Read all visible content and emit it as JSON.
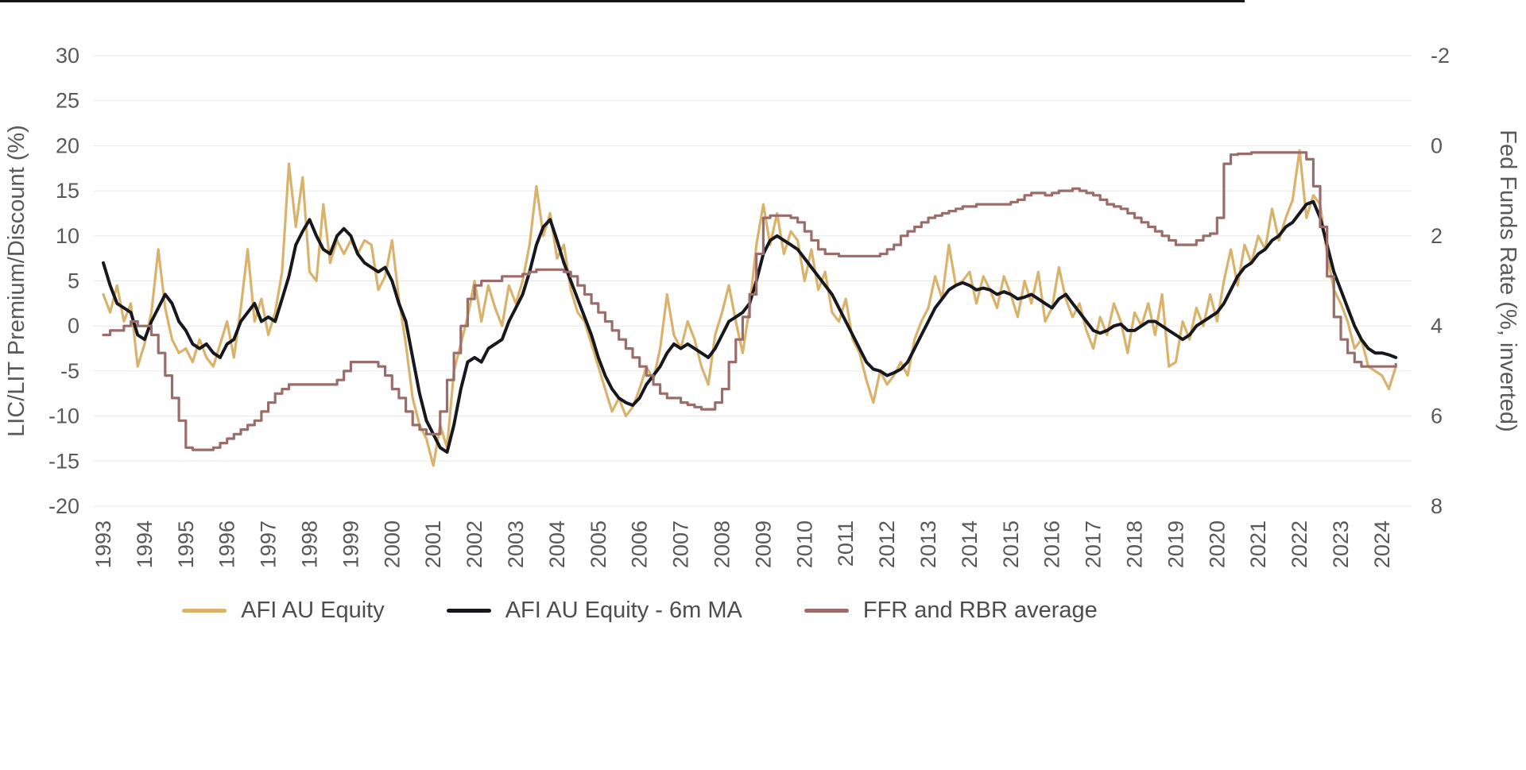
{
  "page": {
    "background_color": "#FFFFFF",
    "top_rule_color": "#141414"
  },
  "chart_data": {
    "type": "line",
    "title": "",
    "grid": true,
    "legend_position": "bottom",
    "left_axis": {
      "label": "LIC/LIT Premium/Discount (%)",
      "min": -20,
      "max": 30,
      "ticks": [
        30,
        25,
        20,
        15,
        10,
        5,
        0,
        -5,
        -10,
        -15,
        -20
      ]
    },
    "right_axis": {
      "label": "Fed Funds Rate (%, inverted)",
      "inverted": true,
      "ticks": [
        -2,
        0,
        2,
        4,
        6,
        8
      ]
    },
    "x_axis": {
      "start_year": 1993,
      "step_months": 2,
      "year_labels": [
        1993,
        1994,
        1995,
        1996,
        1997,
        1998,
        1999,
        2000,
        2001,
        2002,
        2003,
        2004,
        2005,
        2006,
        2007,
        2008,
        2009,
        2010,
        2011,
        2012,
        2013,
        2014,
        2015,
        2016,
        2017,
        2018,
        2019,
        2020,
        2021,
        2022,
        2023,
        2024
      ]
    },
    "series": [
      {
        "name": "AFI AU Equity",
        "color": "#D9B36C",
        "axis": "left",
        "width": 3.2,
        "step": false,
        "values": [
          3.5,
          1.5,
          4.5,
          0.5,
          2.5,
          -4.5,
          -2,
          1.5,
          8.5,
          2,
          -1.5,
          -3,
          -2.5,
          -4,
          -1.5,
          -3.5,
          -4.5,
          -2,
          0.5,
          -3.5,
          2,
          8.5,
          0.5,
          3,
          -1,
          1.5,
          6,
          18,
          11,
          16.5,
          6,
          5,
          13.5,
          7,
          9.5,
          8,
          9.5,
          8,
          9.5,
          9,
          4,
          5.5,
          9.5,
          3,
          -2,
          -8,
          -11,
          -12.5,
          -15.5,
          -11,
          -13.5,
          -5,
          -2,
          1,
          5,
          0.5,
          4.5,
          2,
          0,
          4.5,
          2.5,
          5,
          9,
          15.5,
          10,
          12.5,
          7.5,
          9,
          4,
          1.5,
          0.5,
          -2,
          -4.5,
          -7,
          -9.5,
          -8,
          -10,
          -9,
          -7,
          -4.5,
          -6,
          -2.5,
          3.5,
          -1,
          -2.5,
          0.5,
          -1.5,
          -4.5,
          -6.5,
          -1,
          1.5,
          4.5,
          0.5,
          -3,
          2,
          9,
          13.5,
          9,
          12.5,
          8,
          10.5,
          9.5,
          5,
          8.5,
          4,
          6,
          1.5,
          0.5,
          3,
          -1.5,
          -3,
          -6,
          -8.5,
          -5,
          -6.5,
          -5.5,
          -4,
          -5.5,
          -1.5,
          0.5,
          2,
          5.5,
          3,
          9,
          4.5,
          5,
          6,
          2.5,
          5.5,
          4,
          2,
          5.5,
          3.5,
          1,
          5,
          2.5,
          6,
          0.5,
          2,
          6.5,
          3,
          1,
          2.5,
          -0.5,
          -2.5,
          1,
          -1,
          2.5,
          0.5,
          -3,
          1.5,
          0,
          2.5,
          -1,
          3.5,
          -4.5,
          -4,
          0.5,
          -1.5,
          2,
          0,
          3.5,
          0.5,
          5,
          8.5,
          4.5,
          9,
          7,
          10,
          8.5,
          13,
          9.5,
          12,
          14,
          19.5,
          12,
          14.5,
          13.5,
          8,
          4,
          2.5,
          0.5,
          -2.5,
          -1.5,
          -4.5,
          -5,
          -5.5,
          -7,
          -4.5
        ]
      },
      {
        "name": "AFI AU Equity - 6m MA",
        "color": "#17171E",
        "axis": "left",
        "width": 4,
        "step": false,
        "values": [
          7,
          4.5,
          2.5,
          2,
          1.5,
          -1,
          -1.5,
          0.5,
          2,
          3.5,
          2.5,
          0.5,
          -0.5,
          -2,
          -2.5,
          -2,
          -3,
          -3.5,
          -2,
          -1.5,
          0.5,
          1.5,
          2.5,
          0.5,
          1,
          0.5,
          3,
          5.5,
          9,
          10.5,
          11.8,
          10,
          8.5,
          8,
          10,
          10.8,
          10,
          8,
          7,
          6.5,
          6,
          6.5,
          5,
          2.5,
          0.5,
          -3.5,
          -7.5,
          -10.5,
          -12,
          -13.5,
          -14,
          -11,
          -7,
          -4,
          -3.5,
          -4,
          -2.5,
          -2,
          -1.5,
          0.5,
          2,
          3.5,
          6,
          9,
          11,
          11.8,
          9.5,
          7,
          5,
          3,
          1,
          -1,
          -3.5,
          -5.5,
          -7,
          -8,
          -8.5,
          -8.8,
          -8,
          -6.5,
          -5.5,
          -4.5,
          -3,
          -2,
          -2.5,
          -2,
          -2.5,
          -3,
          -3.5,
          -2.5,
          -1,
          0.5,
          1,
          1.5,
          2.5,
          5,
          8,
          9.5,
          10,
          9.5,
          9,
          8.5,
          7.5,
          6.5,
          5.5,
          4.5,
          3.5,
          2,
          0.5,
          -1,
          -2.5,
          -4,
          -4.8,
          -5,
          -5.5,
          -5.2,
          -4.8,
          -4,
          -2.5,
          -1,
          0.5,
          2,
          3,
          4,
          4.5,
          4.8,
          4.5,
          4,
          4.2,
          4,
          3.5,
          3.8,
          3.5,
          3,
          3.2,
          3.5,
          3,
          2.5,
          2,
          3,
          3.5,
          2.5,
          1.5,
          0.5,
          -0.5,
          -0.8,
          -0.5,
          0,
          0.2,
          -0.5,
          -0.5,
          0,
          0.5,
          0.5,
          0,
          -0.5,
          -1,
          -1.5,
          -1,
          0,
          0.5,
          1,
          1.5,
          2.5,
          4,
          5.5,
          6.5,
          7,
          8,
          8.5,
          9.5,
          10,
          11,
          11.5,
          12.5,
          13.5,
          13.8,
          12,
          9,
          6,
          4,
          2,
          0,
          -1.5,
          -2.5,
          -3,
          -3,
          -3.2,
          -3.5
        ]
      },
      {
        "name": "FFR and RBR average",
        "color": "#9A6C6A",
        "axis": "right",
        "width": 3.2,
        "step": true,
        "values": [
          4.2,
          4.1,
          4.1,
          4,
          3.9,
          4,
          4,
          4.2,
          4.6,
          5.1,
          5.6,
          6.1,
          6.7,
          6.75,
          6.75,
          6.75,
          6.7,
          6.6,
          6.5,
          6.4,
          6.3,
          6.2,
          6.1,
          5.9,
          5.7,
          5.5,
          5.4,
          5.3,
          5.3,
          5.3,
          5.3,
          5.3,
          5.3,
          5.3,
          5.2,
          5,
          4.8,
          4.8,
          4.8,
          4.8,
          4.9,
          5.1,
          5.4,
          5.6,
          5.9,
          6.2,
          6.3,
          6.4,
          6.4,
          5.9,
          5.2,
          4.6,
          4,
          3.4,
          3.1,
          3,
          3,
          3,
          2.9,
          2.9,
          2.9,
          2.85,
          2.8,
          2.75,
          2.75,
          2.75,
          2.75,
          2.8,
          2.9,
          3.1,
          3.3,
          3.5,
          3.7,
          3.9,
          4.1,
          4.3,
          4.5,
          4.7,
          4.9,
          5.1,
          5.3,
          5.5,
          5.6,
          5.6,
          5.7,
          5.75,
          5.8,
          5.85,
          5.85,
          5.7,
          5.4,
          4.8,
          4.3,
          3.8,
          3.3,
          2.4,
          1.6,
          1.55,
          1.55,
          1.55,
          1.6,
          1.7,
          1.9,
          2.1,
          2.3,
          2.4,
          2.4,
          2.45,
          2.45,
          2.45,
          2.45,
          2.45,
          2.45,
          2.4,
          2.3,
          2.2,
          2,
          1.9,
          1.8,
          1.7,
          1.6,
          1.55,
          1.5,
          1.45,
          1.4,
          1.35,
          1.35,
          1.3,
          1.3,
          1.3,
          1.3,
          1.3,
          1.25,
          1.2,
          1.1,
          1.05,
          1.05,
          1.1,
          1.05,
          1,
          1,
          0.95,
          1,
          1.05,
          1.1,
          1.2,
          1.3,
          1.35,
          1.4,
          1.5,
          1.6,
          1.7,
          1.8,
          1.9,
          2,
          2.1,
          2.2,
          2.2,
          2.2,
          2.1,
          2,
          1.95,
          1.6,
          0.4,
          0.2,
          0.18,
          0.18,
          0.15,
          0.15,
          0.15,
          0.15,
          0.15,
          0.15,
          0.15,
          0.15,
          0.3,
          0.9,
          1.8,
          2.9,
          3.8,
          4.3,
          4.6,
          4.8,
          4.9,
          4.9,
          4.9,
          4.9,
          4.9,
          4.85
        ]
      }
    ]
  },
  "legend": {
    "items": [
      {
        "label": "AFI AU Equity"
      },
      {
        "label": "AFI AU Equity - 6m MA"
      },
      {
        "label": "FFR and RBR average"
      }
    ]
  }
}
